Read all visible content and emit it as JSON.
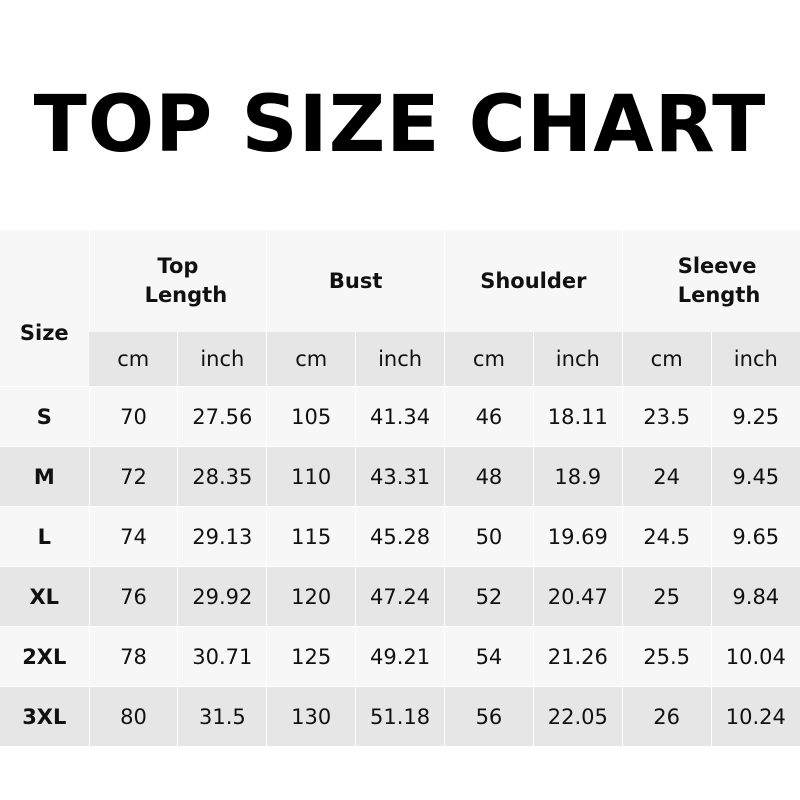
{
  "title": "TOP SIZE CHART",
  "header": {
    "size": "Size",
    "groups": [
      "Top Length",
      "Bust",
      "Shoulder",
      "Sleeve Length"
    ],
    "units": [
      "cm",
      "inch",
      "cm",
      "inch",
      "cm",
      "inch",
      "cm",
      "inch"
    ]
  },
  "rows": [
    [
      "S",
      "70",
      "27.56",
      "105",
      "41.34",
      "46",
      "18.11",
      "23.5",
      "9.25"
    ],
    [
      "M",
      "72",
      "28.35",
      "110",
      "43.31",
      "48",
      "18.9",
      "24",
      "9.45"
    ],
    [
      "L",
      "74",
      "29.13",
      "115",
      "45.28",
      "50",
      "19.69",
      "24.5",
      "9.65"
    ],
    [
      "XL",
      "76",
      "29.92",
      "120",
      "47.24",
      "52",
      "20.47",
      "25",
      "9.84"
    ],
    [
      "2XL",
      "78",
      "30.71",
      "125",
      "49.21",
      "54",
      "21.26",
      "25.5",
      "10.04"
    ],
    [
      "3XL",
      "80",
      "31.5",
      "130",
      "51.18",
      "56",
      "22.05",
      "26",
      "10.24"
    ]
  ],
  "colors": {
    "row_light": "#f7f7f7",
    "row_dark": "#e6e6e6",
    "text": "#000000"
  }
}
